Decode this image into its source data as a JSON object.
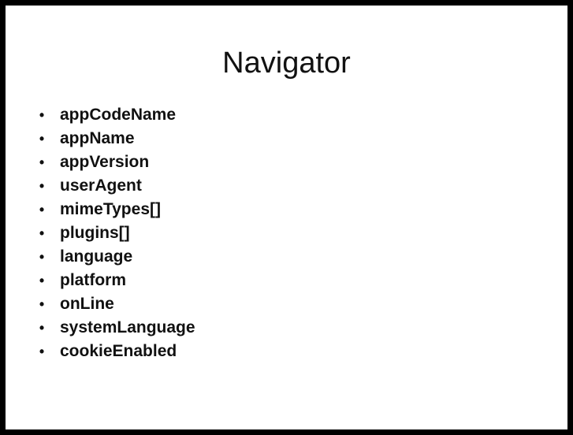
{
  "slide": {
    "title": "Navigator",
    "bullet_glyph": "•",
    "items": [
      "appCodeName",
      "appName",
      "appVersion",
      "userAgent",
      "mimeTypes[]",
      "plugins[]",
      "language",
      "platform",
      "onLine",
      "systemLanguage",
      "cookieEnabled"
    ]
  },
  "colors": {
    "frame": "#000000",
    "background": "#ffffff",
    "text": "#111111"
  }
}
